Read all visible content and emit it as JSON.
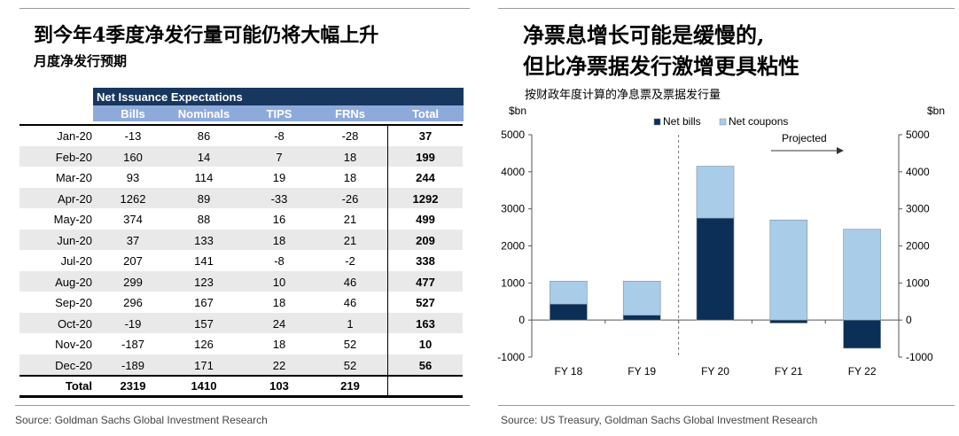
{
  "left": {
    "title": "到今年4季度净发行量可能仍将大幅上升",
    "subtitle": "月度净发行预期",
    "table_title": "Net Issuance Expectations",
    "columns": [
      "Bills",
      "Nominals",
      "TIPS",
      "FRNs",
      "Total"
    ],
    "rows": [
      {
        "month": "Jan-20",
        "values": [
          "-13",
          "86",
          "-8",
          "-28",
          "37"
        ]
      },
      {
        "month": "Feb-20",
        "values": [
          "160",
          "14",
          "7",
          "18",
          "199"
        ]
      },
      {
        "month": "Mar-20",
        "values": [
          "93",
          "114",
          "19",
          "18",
          "244"
        ]
      },
      {
        "month": "Apr-20",
        "values": [
          "1262",
          "89",
          "-33",
          "-26",
          "1292"
        ]
      },
      {
        "month": "May-20",
        "values": [
          "374",
          "88",
          "16",
          "21",
          "499"
        ]
      },
      {
        "month": "Jun-20",
        "values": [
          "37",
          "133",
          "18",
          "21",
          "209"
        ]
      },
      {
        "month": "Jul-20",
        "values": [
          "207",
          "141",
          "-8",
          "-2",
          "338"
        ]
      },
      {
        "month": "Aug-20",
        "values": [
          "299",
          "123",
          "10",
          "46",
          "477"
        ]
      },
      {
        "month": "Sep-20",
        "values": [
          "296",
          "167",
          "18",
          "46",
          "527"
        ]
      },
      {
        "month": "Oct-20",
        "values": [
          "-19",
          "157",
          "24",
          "1",
          "163"
        ]
      },
      {
        "month": "Nov-20",
        "values": [
          "-187",
          "126",
          "18",
          "52",
          "10"
        ]
      },
      {
        "month": "Dec-20",
        "values": [
          "-189",
          "171",
          "22",
          "52",
          "56"
        ]
      }
    ],
    "total_row": {
      "label": "Total",
      "values": [
        "2319",
        "1410",
        "103",
        "219",
        ""
      ]
    },
    "source": "Source: Goldman Sachs Global Investment Research"
  },
  "right": {
    "title_line1": "净票息增长可能是缓慢的,",
    "title_line2": "但比净票据发行激增更具粘性",
    "subtitle": "按财政年度计算的净息票及票据发行量",
    "source": "Source: US Treasury, Goldman Sachs Global Investment Research"
  },
  "chart_data": {
    "type": "bar",
    "stacked": true,
    "categories": [
      "FY 18",
      "FY 19",
      "FY 20",
      "FY 21",
      "FY 22"
    ],
    "series": [
      {
        "name": "Net bills",
        "color": "#0b2f57",
        "values": [
          430,
          130,
          2750,
          -80,
          -760
        ]
      },
      {
        "name": "Net coupons",
        "color": "#a9cce8",
        "values": [
          620,
          920,
          1400,
          2700,
          2450
        ]
      }
    ],
    "ylabel_left": "$bn",
    "ylabel_right": "$bn",
    "ylim": [
      -1000,
      5000
    ],
    "yticks": [
      -1000,
      0,
      1000,
      2000,
      3000,
      4000,
      5000
    ],
    "annotation": "Projected",
    "projected_from": "FY 20",
    "legend_position": "top",
    "grid": false
  }
}
